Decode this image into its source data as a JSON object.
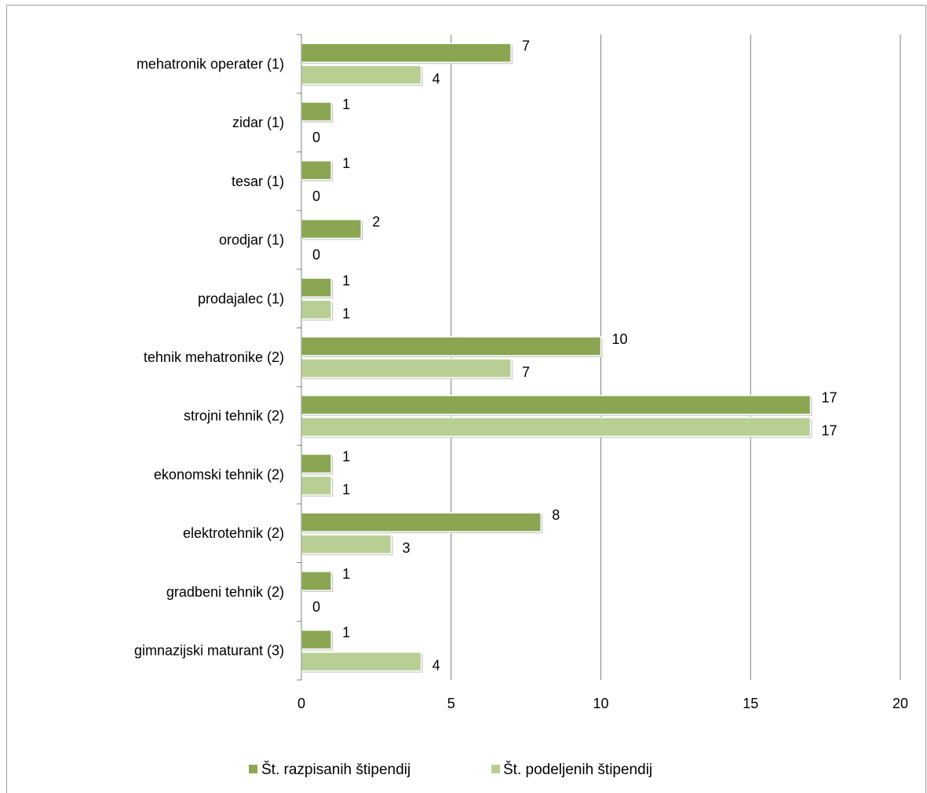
{
  "chart_data": {
    "type": "bar",
    "orientation": "horizontal",
    "categories": [
      "mehatronik operater (1)",
      "zidar (1)",
      "tesar (1)",
      "orodjar (1)",
      "prodajalec (1)",
      "tehnik mehatronike (2)",
      "strojni tehnik (2)",
      "ekonomski tehnik (2)",
      "elektrotehnik (2)",
      "gradbeni tehnik (2)",
      "gimnazijski maturant (3)"
    ],
    "series": [
      {
        "name": "Št. razpisanih štipendij",
        "color": "#8aa653",
        "values": [
          7,
          1,
          1,
          2,
          1,
          10,
          17,
          1,
          8,
          1,
          1
        ]
      },
      {
        "name": "Št. podeljenih štipendij",
        "color": "#b8cf93",
        "values": [
          4,
          0,
          0,
          0,
          1,
          7,
          17,
          1,
          3,
          0,
          4
        ]
      }
    ],
    "xlim": [
      0,
      20
    ],
    "xticks": [
      0,
      5,
      10,
      15,
      20
    ],
    "xtick_labels": [
      "0",
      "5",
      "10",
      "15",
      "20"
    ],
    "grid": "vertical",
    "legend": "bottom",
    "title": "",
    "xlabel": "",
    "ylabel": ""
  }
}
